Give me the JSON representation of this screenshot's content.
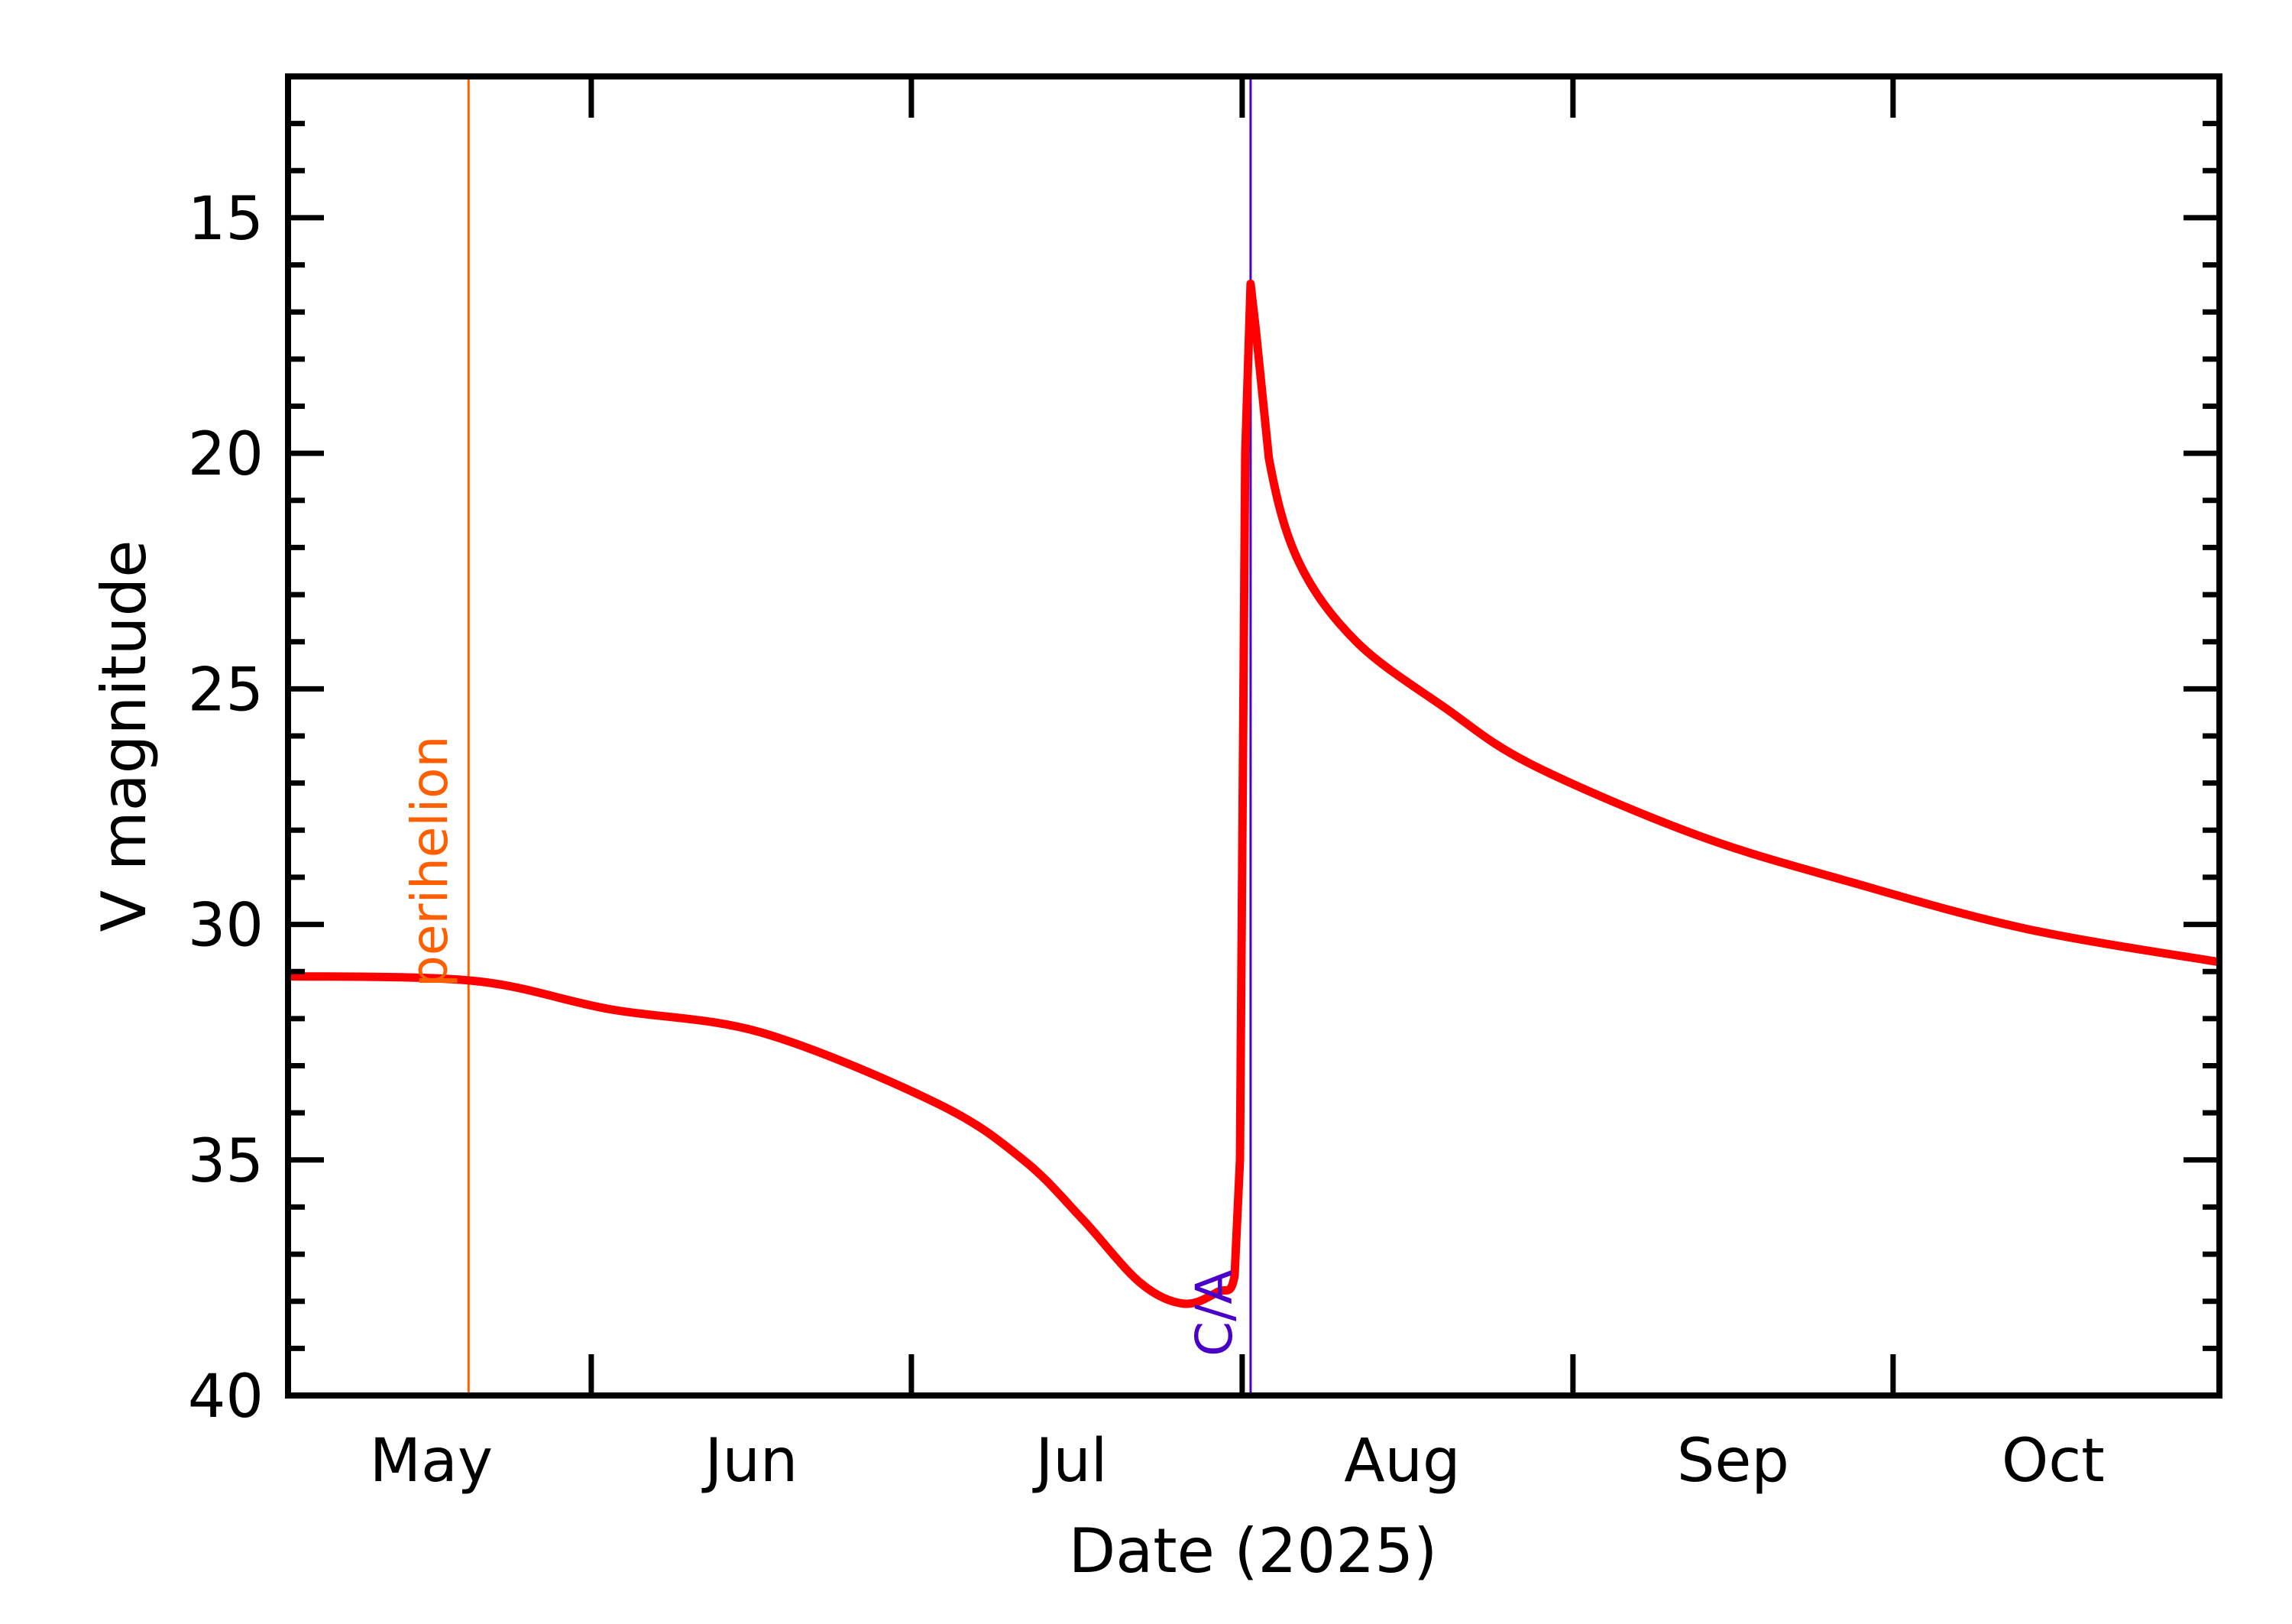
{
  "chart_data": {
    "type": "line",
    "title": "",
    "xlabel": "Date (2025)",
    "ylabel": "V magnitude",
    "x_range": [
      "2025-05-03T14:00",
      "2025-10-31T14:00"
    ],
    "ylim": [
      40,
      12
    ],
    "y_inverted": true,
    "grid": false,
    "legend": null,
    "x_ticks": [
      {
        "date": "2025-06-01"
      },
      {
        "date": "2025-07-01"
      },
      {
        "date": "2025-08-01"
      },
      {
        "date": "2025-09-01"
      },
      {
        "date": "2025-10-01"
      }
    ],
    "x_tick_labels": [
      {
        "label": "May",
        "date": "2025-05-17"
      },
      {
        "label": "Jun",
        "date": "2025-06-16"
      },
      {
        "label": "Jul",
        "date": "2025-07-16"
      },
      {
        "label": "Aug",
        "date": "2025-08-16"
      },
      {
        "label": "Sep",
        "date": "2025-09-16"
      },
      {
        "label": "Oct",
        "date": "2025-10-16"
      }
    ],
    "y_major_ticks": [
      15,
      20,
      25,
      30,
      35,
      40
    ],
    "y_tick_labels": [
      "15",
      "20",
      "25",
      "30",
      "35",
      "40"
    ],
    "y_minor_step": 1,
    "series": [
      {
        "name": "V magnitude",
        "color": "#ff0000",
        "x": [
          "2025-05-03T14:00",
          "2025-05-21",
          "2025-06-02T17:00",
          "2025-06-17",
          "2025-07-03T10:00",
          "2025-07-11T12:00",
          "2025-07-17",
          "2025-07-22T10:00",
          "2025-07-26T12:00",
          "2025-07-29T17:00",
          "2025-07-31T07:00",
          "2025-07-31T19:00",
          "2025-08-01T07:00",
          "2025-08-01T19:00",
          "2025-08-02T07:00",
          "2025-08-03T12:00",
          "2025-08-06T07:00",
          "2025-08-11T17:00",
          "2025-08-20",
          "2025-08-28T02:00",
          "2025-09-12T14:00",
          "2025-09-27",
          "2025-10-13T14:00",
          "2025-10-31T14:00"
        ],
        "values": [
          31.1,
          31.2,
          31.8,
          32.3,
          33.8,
          35.0,
          36.25,
          37.6,
          38.05,
          37.8,
          37.45,
          35.0,
          20.0,
          16.4,
          17.4,
          20.1,
          22.3,
          24.0,
          25.4,
          26.6,
          28.1,
          29.1,
          30.1,
          30.8
        ]
      }
    ],
    "vertical_markers": [
      {
        "name": "perihelion",
        "label": "perihelion",
        "date": "2025-05-20T12:00",
        "color": "#ff5f00"
      },
      {
        "name": "close-approach",
        "label": "C/A",
        "date": "2025-08-01T19:00",
        "color": "#4b00c8"
      }
    ]
  },
  "labels": {
    "xlabel": "Date (2025)",
    "ylabel": "V magnitude",
    "perihelion": "perihelion",
    "ca": "C/A"
  }
}
